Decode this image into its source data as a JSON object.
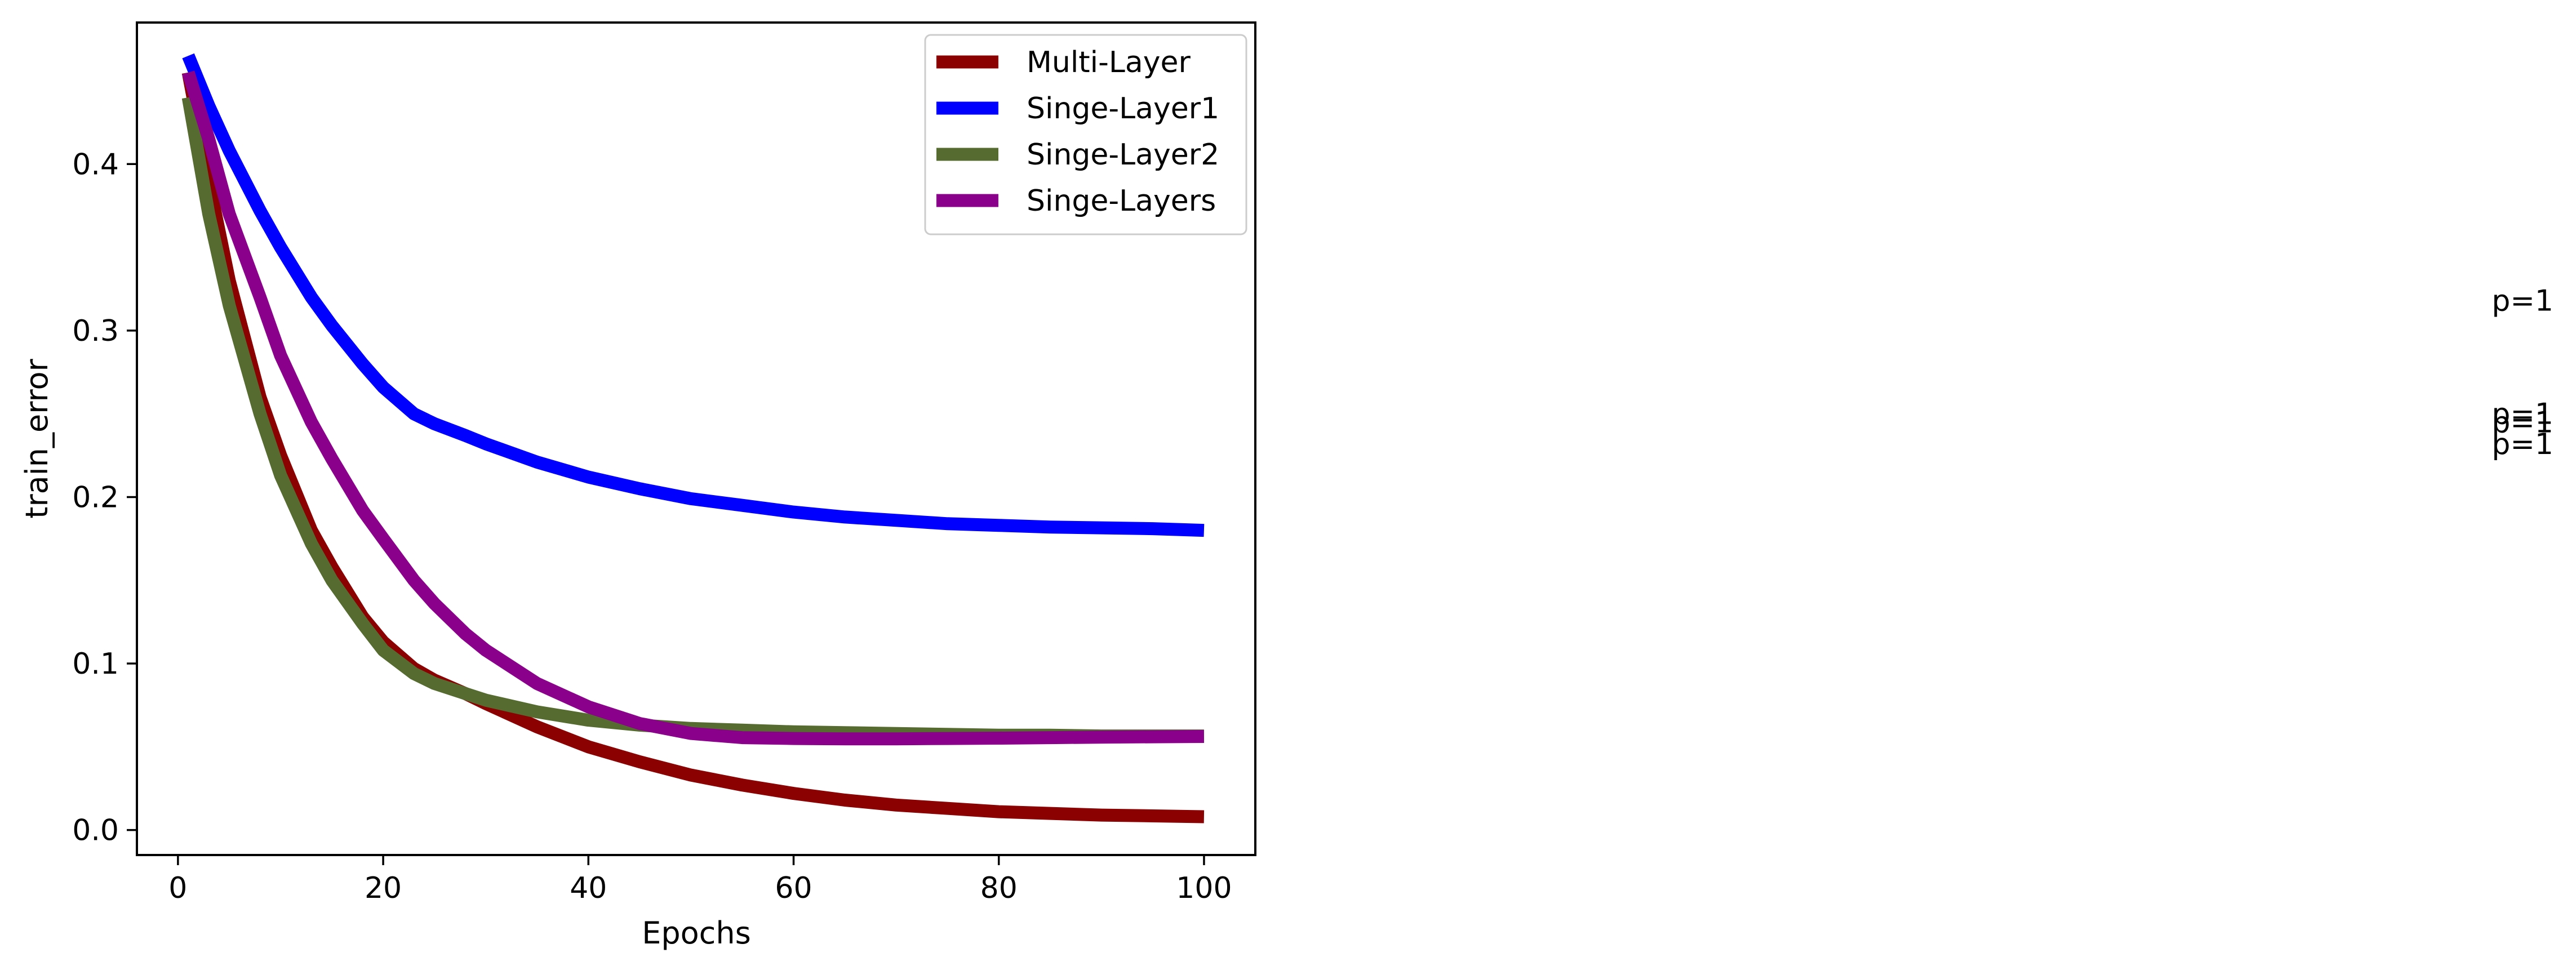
{
  "chart_data": {
    "type": "line",
    "xlabel": "Epochs",
    "ylabel": "train_error",
    "xlim": [
      -4,
      105
    ],
    "ylim": [
      -0.015,
      0.485
    ],
    "xticks": [
      0,
      20,
      40,
      60,
      80,
      100
    ],
    "yticks": [
      0.0,
      0.1,
      0.2,
      0.3,
      0.4
    ],
    "xtick_labels": [
      "0",
      "20",
      "40",
      "60",
      "80",
      "100"
    ],
    "ytick_labels": [
      "0.0",
      "0.1",
      "0.2",
      "0.3",
      "0.4"
    ],
    "grid": false,
    "legend_position": "top-right",
    "series": [
      {
        "name": "Multi-Layer",
        "color": "#8b0000",
        "x": [
          1,
          3,
          5,
          8,
          10,
          13,
          15,
          18,
          20,
          23,
          25,
          28,
          30,
          35,
          40,
          45,
          50,
          55,
          60,
          65,
          70,
          75,
          80,
          85,
          90,
          95,
          100
        ],
        "y": [
          0.455,
          0.39,
          0.33,
          0.26,
          0.225,
          0.18,
          0.158,
          0.128,
          0.113,
          0.097,
          0.09,
          0.082,
          0.076,
          0.062,
          0.05,
          0.041,
          0.033,
          0.027,
          0.022,
          0.018,
          0.015,
          0.013,
          0.011,
          0.01,
          0.009,
          0.0085,
          0.008
        ]
      },
      {
        "name": "Singe-Layer1",
        "color": "#0000ff",
        "x": [
          1,
          3,
          5,
          8,
          10,
          13,
          15,
          18,
          20,
          23,
          25,
          28,
          30,
          35,
          40,
          45,
          50,
          55,
          60,
          65,
          70,
          75,
          80,
          85,
          90,
          95,
          100
        ],
        "y": [
          0.465,
          0.435,
          0.408,
          0.372,
          0.35,
          0.32,
          0.303,
          0.28,
          0.266,
          0.25,
          0.244,
          0.237,
          0.232,
          0.221,
          0.212,
          0.205,
          0.199,
          0.195,
          0.191,
          0.188,
          0.186,
          0.184,
          0.183,
          0.182,
          0.1815,
          0.181,
          0.18
        ]
      },
      {
        "name": "Singe-Layer2",
        "color": "#556b2f",
        "x": [
          1,
          3,
          5,
          8,
          10,
          13,
          15,
          18,
          20,
          23,
          25,
          28,
          30,
          35,
          40,
          45,
          50,
          55,
          60,
          65,
          70,
          75,
          80,
          85,
          90,
          95,
          100
        ],
        "y": [
          0.44,
          0.37,
          0.315,
          0.25,
          0.213,
          0.172,
          0.15,
          0.124,
          0.108,
          0.094,
          0.088,
          0.082,
          0.078,
          0.071,
          0.066,
          0.063,
          0.061,
          0.06,
          0.059,
          0.0585,
          0.058,
          0.0575,
          0.057,
          0.057,
          0.0565,
          0.0565,
          0.0565
        ]
      },
      {
        "name": "Singe-Layers",
        "color": "#8b008b",
        "x": [
          1,
          3,
          5,
          8,
          10,
          13,
          15,
          18,
          20,
          23,
          25,
          28,
          30,
          35,
          40,
          45,
          50,
          55,
          60,
          65,
          70,
          75,
          80,
          85,
          90,
          95,
          100
        ],
        "y": [
          0.455,
          0.415,
          0.37,
          0.32,
          0.285,
          0.245,
          0.223,
          0.192,
          0.175,
          0.15,
          0.136,
          0.118,
          0.108,
          0.088,
          0.074,
          0.064,
          0.058,
          0.0555,
          0.055,
          0.0548,
          0.0548,
          0.055,
          0.0552,
          0.0555,
          0.0558,
          0.056,
          0.0562
        ]
      }
    ],
    "annotations": [
      {
        "text": "p=1",
        "y": 0.318
      },
      {
        "text": "p=1",
        "y": 0.25
      },
      {
        "text": "p=1",
        "y": 0.245
      },
      {
        "text": "p=1",
        "y": 0.232
      }
    ]
  }
}
